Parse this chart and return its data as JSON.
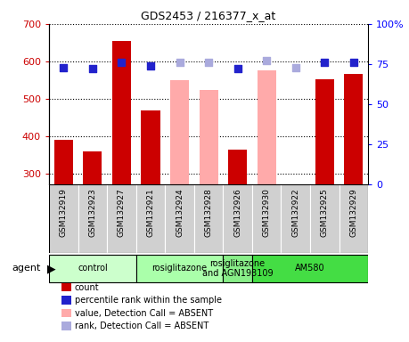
{
  "title": "GDS2453 / 216377_x_at",
  "samples": [
    "GSM132919",
    "GSM132923",
    "GSM132927",
    "GSM132921",
    "GSM132924",
    "GSM132928",
    "GSM132926",
    "GSM132930",
    "GSM132922",
    "GSM132925",
    "GSM132929"
  ],
  "bar_values": [
    390,
    358,
    655,
    468,
    549,
    524,
    363,
    577,
    null,
    551,
    567
  ],
  "bar_colors": [
    "#cc0000",
    "#cc0000",
    "#cc0000",
    "#cc0000",
    "#ffaaaa",
    "#ffaaaa",
    "#cc0000",
    "#ffaaaa",
    "#ffaaaa",
    "#cc0000",
    "#cc0000"
  ],
  "rank_values": [
    73,
    72,
    76,
    74,
    76,
    76,
    72,
    77,
    73,
    76,
    76
  ],
  "rank_colors": [
    "#2222cc",
    "#2222cc",
    "#2222cc",
    "#2222cc",
    "#aaaadd",
    "#aaaadd",
    "#2222cc",
    "#aaaadd",
    "#aaaadd",
    "#2222cc",
    "#2222cc"
  ],
  "ylim_left": [
    270,
    700
  ],
  "ylim_right": [
    0,
    100
  ],
  "yticks_left": [
    300,
    400,
    500,
    600,
    700
  ],
  "yticks_right": [
    0,
    25,
    50,
    75,
    100
  ],
  "groups": [
    {
      "label": "control",
      "start": 0,
      "end": 3,
      "color": "#ccffcc"
    },
    {
      "label": "rosiglitazone",
      "start": 3,
      "end": 6,
      "color": "#aaffaa"
    },
    {
      "label": "rosiglitazone\nand AGN193109",
      "start": 6,
      "end": 7,
      "color": "#88ee88"
    },
    {
      "label": "AM580",
      "start": 7,
      "end": 11,
      "color": "#44dd44"
    }
  ],
  "agent_label": "agent",
  "legend_items": [
    {
      "color": "#cc0000",
      "label": "count"
    },
    {
      "color": "#2222cc",
      "label": "percentile rank within the sample"
    },
    {
      "color": "#ffaaaa",
      "label": "value, Detection Call = ABSENT"
    },
    {
      "color": "#aaaadd",
      "label": "rank, Detection Call = ABSENT"
    }
  ],
  "bar_width": 0.65,
  "rank_marker_size": 40,
  "cell_bg": "#d0d0d0",
  "plot_bg": "#ffffff"
}
